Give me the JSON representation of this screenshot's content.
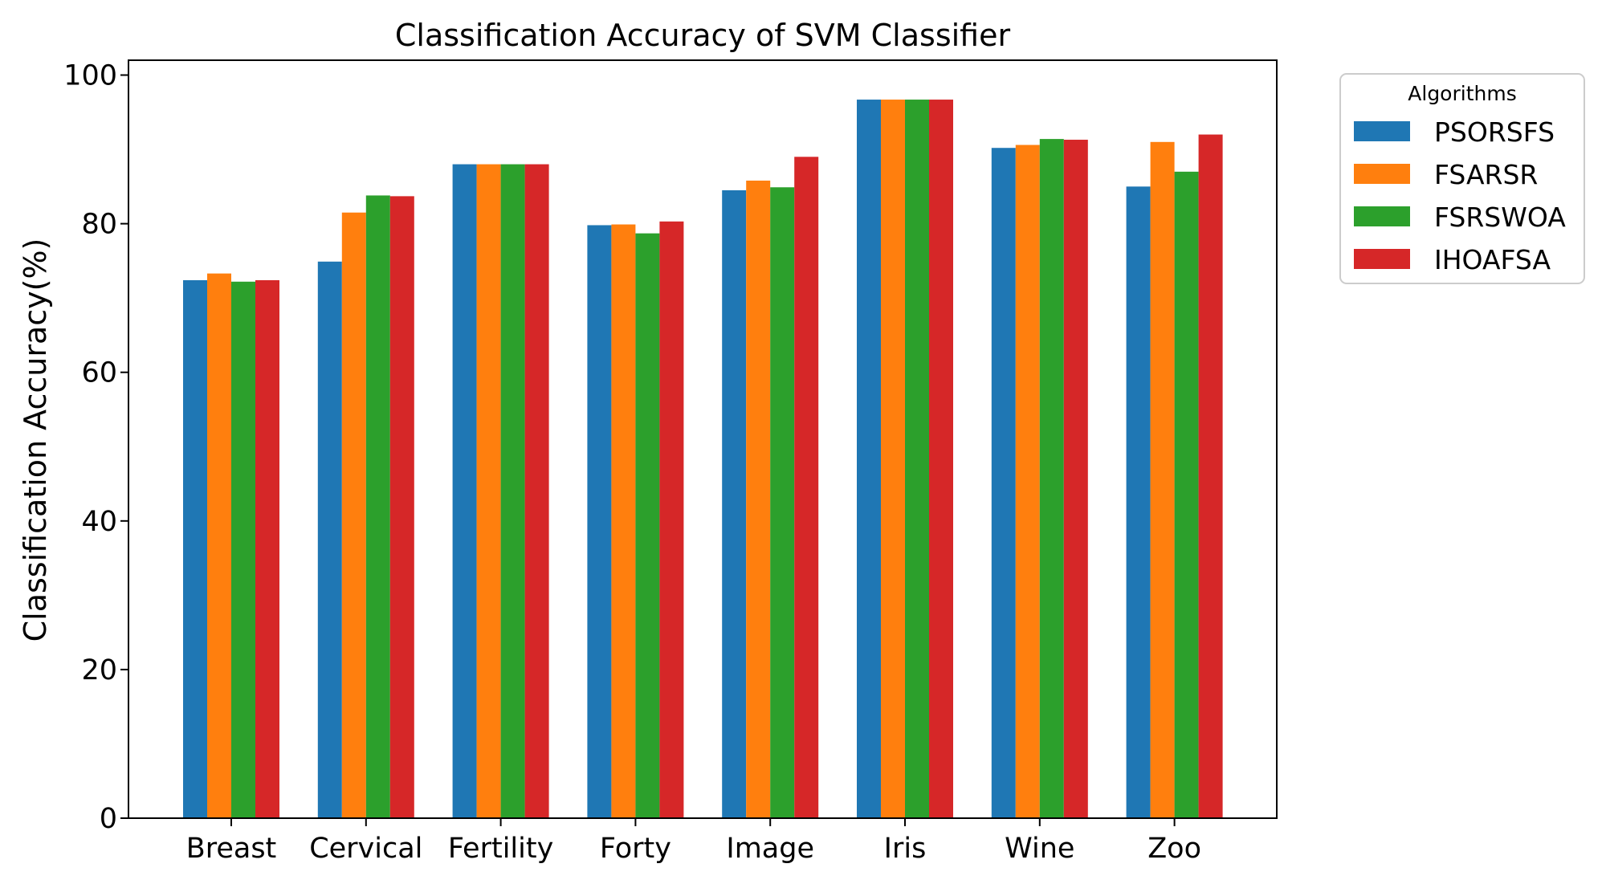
{
  "chart_data": {
    "type": "bar",
    "title": "Classification Accuracy of SVM Classifier",
    "xlabel": "",
    "ylabel": "Classification Accuracy(%)",
    "ylim": [
      0,
      102
    ],
    "yticks": [
      0,
      20,
      40,
      60,
      80,
      100
    ],
    "grid": false,
    "legend": {
      "title": "Algorithms",
      "placement": "outside-top-right"
    },
    "categories": [
      "Breast",
      "Cervical",
      "Fertility",
      "Forty",
      "Image",
      "Iris",
      "Wine",
      "Zoo"
    ],
    "series": [
      {
        "name": "PSORSFS",
        "color": "#1f77b4",
        "values": [
          72.4,
          74.9,
          88.0,
          79.8,
          84.5,
          96.7,
          90.2,
          85.0
        ]
      },
      {
        "name": "FSARSR",
        "color": "#ff7f0e",
        "values": [
          73.3,
          81.5,
          88.0,
          79.9,
          85.8,
          96.7,
          90.6,
          91.0
        ]
      },
      {
        "name": "FSRSWOA",
        "color": "#2ca02c",
        "values": [
          72.2,
          83.8,
          88.0,
          78.7,
          84.9,
          96.7,
          91.4,
          87.0
        ]
      },
      {
        "name": "IHOAFSA",
        "color": "#d62728",
        "values": [
          72.4,
          83.7,
          88.0,
          80.3,
          89.0,
          96.7,
          91.3,
          92.0
        ]
      }
    ]
  }
}
